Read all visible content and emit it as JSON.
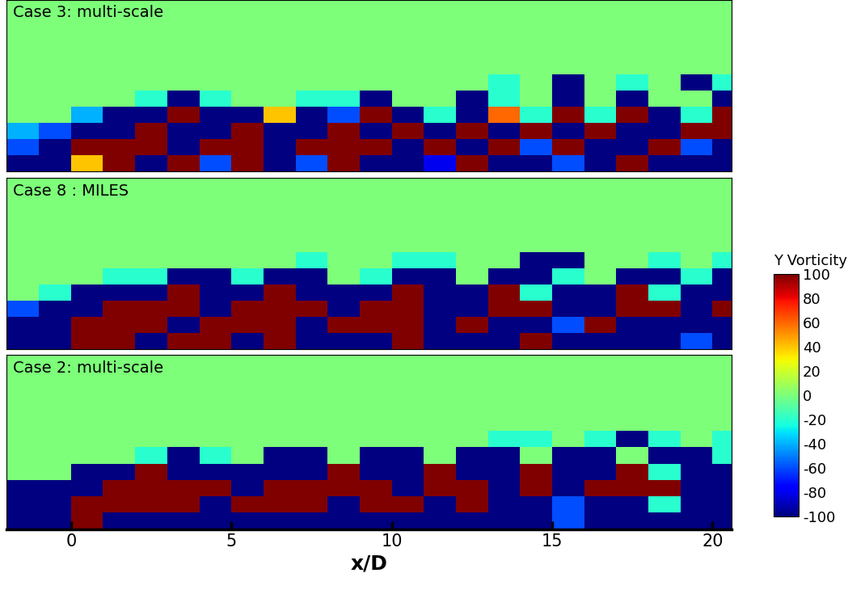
{
  "chart_data": [
    {
      "type": "heatmap",
      "title": "Case 3: multi-scale",
      "x": [
        -1.5,
        -0.5,
        0.5,
        1.5,
        2.5,
        3.5,
        4.5,
        5.5,
        6.5,
        7.5,
        8.5,
        9.5,
        10.5,
        11.5,
        12.5,
        13.5,
        14.5,
        15.5,
        16.5,
        17.5,
        18.5,
        19.5,
        20.5
      ],
      "y": [
        0.25,
        0.75,
        1.25,
        1.75,
        2.25,
        2.75,
        3.25
      ],
      "xlim": [
        -2,
        20.6
      ],
      "ylim": [
        0,
        5.3
      ],
      "tick_labels": false,
      "cells": [
        [
          -100,
          -100,
          40,
          100,
          -100,
          100,
          -60,
          100,
          -100,
          -60,
          100,
          -100,
          -100,
          -80,
          100,
          -100,
          -100,
          -60,
          -100,
          100,
          -100,
          -100,
          -100
        ],
        [
          -60,
          -100,
          100,
          100,
          100,
          -100,
          100,
          100,
          -100,
          100,
          100,
          100,
          -100,
          100,
          -100,
          100,
          -60,
          100,
          -100,
          -100,
          100,
          -60,
          -100
        ],
        [
          -40,
          -60,
          -100,
          -100,
          100,
          -100,
          -100,
          100,
          -100,
          -100,
          100,
          -100,
          100,
          -100,
          100,
          -100,
          100,
          -100,
          100,
          -100,
          -100,
          100,
          100
        ],
        [
          0,
          0,
          -40,
          -100,
          -100,
          100,
          -100,
          -100,
          40,
          -100,
          -60,
          100,
          -100,
          -20,
          -100,
          60,
          -20,
          100,
          -20,
          100,
          -100,
          -20,
          100
        ],
        [
          0,
          0,
          0,
          0,
          -20,
          -100,
          -20,
          0,
          0,
          -20,
          -20,
          -100,
          0,
          0,
          -100,
          -20,
          0,
          -100,
          0,
          -100,
          0,
          0,
          -100
        ],
        [
          0,
          0,
          0,
          0,
          0,
          0,
          0,
          0,
          0,
          0,
          0,
          0,
          0,
          0,
          0,
          -20,
          0,
          -100,
          0,
          -20,
          0,
          -100,
          -20
        ],
        [
          0,
          0,
          0,
          0,
          0,
          0,
          0,
          0,
          0,
          0,
          0,
          0,
          0,
          0,
          0,
          0,
          0,
          0,
          0,
          0,
          0,
          0,
          0
        ]
      ]
    },
    {
      "type": "heatmap",
      "title": "Case 8 : MILES",
      "x": [
        -1.5,
        -0.5,
        0.5,
        1.5,
        2.5,
        3.5,
        4.5,
        5.5,
        6.5,
        7.5,
        8.5,
        9.5,
        10.5,
        11.5,
        12.5,
        13.5,
        14.5,
        15.5,
        16.5,
        17.5,
        18.5,
        19.5,
        20.5
      ],
      "y": [
        0.25,
        0.75,
        1.25,
        1.75,
        2.25,
        2.75,
        3.25
      ],
      "xlim": [
        -2,
        20.6
      ],
      "ylim": [
        0,
        5.3
      ],
      "tick_labels": false,
      "colorbar": {
        "label": "Y Vorticity",
        "range": [
          -100,
          100
        ],
        "ticks": [
          -100,
          -80,
          -60,
          -40,
          -20,
          0,
          20,
          40,
          60,
          80,
          100
        ]
      },
      "cells": [
        [
          -100,
          -100,
          100,
          100,
          -100,
          100,
          100,
          -100,
          100,
          -100,
          -100,
          -100,
          100,
          -100,
          -100,
          -100,
          100,
          -100,
          -100,
          -100,
          -100,
          -60,
          -100
        ],
        [
          -100,
          -100,
          100,
          100,
          100,
          -100,
          100,
          100,
          100,
          -100,
          100,
          100,
          100,
          -100,
          100,
          -100,
          -100,
          -60,
          100,
          -100,
          -100,
          -100,
          -100
        ],
        [
          -60,
          -100,
          -100,
          100,
          100,
          100,
          -100,
          100,
          100,
          100,
          -100,
          100,
          100,
          -100,
          -100,
          100,
          100,
          -100,
          -100,
          100,
          100,
          -100,
          100
        ],
        [
          0,
          -20,
          -100,
          -100,
          -100,
          100,
          -100,
          -100,
          100,
          -100,
          -100,
          -100,
          100,
          -100,
          -100,
          100,
          -20,
          -100,
          -100,
          100,
          -20,
          -100,
          -100
        ],
        [
          0,
          0,
          0,
          -20,
          -20,
          -100,
          -100,
          -20,
          -100,
          -100,
          0,
          -20,
          -100,
          -100,
          0,
          -100,
          -100,
          -20,
          0,
          -100,
          -100,
          -20,
          -100
        ],
        [
          0,
          0,
          0,
          0,
          0,
          0,
          0,
          0,
          0,
          -20,
          0,
          0,
          -20,
          -20,
          0,
          0,
          -100,
          -100,
          0,
          0,
          -20,
          0,
          -20
        ],
        [
          0,
          0,
          0,
          0,
          0,
          0,
          0,
          0,
          0,
          0,
          0,
          0,
          0,
          0,
          0,
          0,
          0,
          0,
          0,
          0,
          0,
          0,
          0
        ]
      ]
    },
    {
      "type": "heatmap",
      "title": "Case 2: multi-scale",
      "x": [
        -1.5,
        -0.5,
        0.5,
        1.5,
        2.5,
        3.5,
        4.5,
        5.5,
        6.5,
        7.5,
        8.5,
        9.5,
        10.5,
        11.5,
        12.5,
        13.5,
        14.5,
        15.5,
        16.5,
        17.5,
        18.5,
        19.5,
        20.5
      ],
      "y": [
        0.25,
        0.75,
        1.25,
        1.75,
        2.25,
        2.75,
        3.25
      ],
      "xlim": [
        -2,
        20.6
      ],
      "ylim": [
        0,
        5.3
      ],
      "tick_labels": "x",
      "xticks": [
        0,
        5,
        10,
        15,
        20
      ],
      "x_label": "x/D",
      "cells": [
        [
          -100,
          -100,
          100,
          -100,
          -100,
          -100,
          -100,
          -100,
          -100,
          -100,
          -100,
          -100,
          -100,
          -100,
          -100,
          -100,
          -100,
          -60,
          -100,
          -100,
          -100,
          -100,
          -100
        ],
        [
          -100,
          -100,
          100,
          100,
          100,
          100,
          -100,
          100,
          100,
          100,
          -100,
          100,
          100,
          -100,
          100,
          -100,
          -100,
          -60,
          -100,
          -100,
          -20,
          -100,
          -100
        ],
        [
          -100,
          -100,
          -100,
          100,
          100,
          100,
          100,
          -100,
          100,
          100,
          100,
          100,
          -100,
          100,
          100,
          -100,
          100,
          -100,
          100,
          100,
          100,
          -100,
          -100
        ],
        [
          0,
          0,
          -100,
          -100,
          100,
          -100,
          -100,
          -100,
          -100,
          -100,
          100,
          -100,
          -100,
          100,
          -100,
          -100,
          100,
          -100,
          -100,
          100,
          -20,
          -100,
          -100
        ],
        [
          0,
          0,
          0,
          0,
          -20,
          -100,
          -20,
          0,
          -100,
          -100,
          0,
          -100,
          -100,
          0,
          -100,
          -100,
          0,
          -100,
          -100,
          0,
          -100,
          -100,
          -20
        ],
        [
          0,
          0,
          0,
          0,
          0,
          0,
          0,
          0,
          0,
          0,
          0,
          0,
          0,
          0,
          0,
          -20,
          -20,
          0,
          -20,
          -100,
          -20,
          0,
          -20
        ],
        [
          0,
          0,
          0,
          0,
          0,
          0,
          0,
          0,
          0,
          0,
          0,
          0,
          0,
          0,
          0,
          0,
          0,
          0,
          0,
          0,
          0,
          0,
          0
        ]
      ]
    }
  ]
}
